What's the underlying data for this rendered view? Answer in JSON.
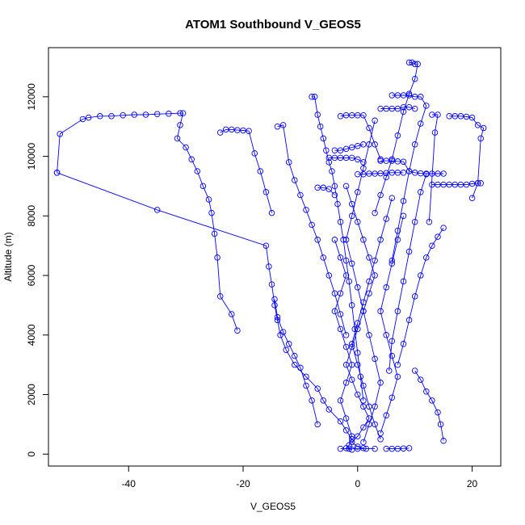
{
  "chart_data": {
    "type": "scatter",
    "title": "ATOM1 Southbound V_GEOS5",
    "xlabel": "V_GEOS5",
    "ylabel": "Altitude (m)",
    "xlim": [
      -54,
      25
    ],
    "ylim": [
      -400,
      13650
    ],
    "xticks": [
      -40,
      -20,
      0,
      20
    ],
    "yticks": [
      0,
      2000,
      4000,
      6000,
      8000,
      10000,
      12000
    ],
    "grid": false,
    "legend": "none",
    "series_color": "#0000ff",
    "series": [
      {
        "mode": "lines+markers",
        "x": [
          -52.5,
          -35,
          -16,
          -15.5,
          -15,
          -14.5,
          -14,
          -13.5,
          -12.5,
          -11,
          -9,
          -7,
          -6,
          -5,
          -3,
          -2,
          -1,
          -1.5,
          -2,
          -1
        ],
        "y": [
          9450,
          8200,
          7000,
          6300,
          5700,
          5000,
          4500,
          4000,
          3500,
          3000,
          2600,
          2200,
          1800,
          1500,
          1100,
          800,
          500,
          300,
          200,
          150
        ]
      },
      {
        "mode": "lines+markers",
        "x": [
          -52.5,
          -52,
          -48,
          -47,
          -45,
          -43,
          -41,
          -39,
          -37,
          -35,
          -33,
          -31,
          -30.5,
          -31,
          -31.5,
          -30,
          -29,
          -28,
          -27,
          -26,
          -25.5,
          -25,
          -24.5,
          -24,
          -22,
          -21
        ],
        "y": [
          9450,
          10750,
          11250,
          11300,
          11350,
          11350,
          11380,
          11400,
          11400,
          11420,
          11430,
          11450,
          11450,
          11050,
          10600,
          10300,
          9900,
          9500,
          9000,
          8550,
          8100,
          7400,
          6600,
          5300,
          4700,
          4150
        ]
      },
      {
        "mode": "lines+markers",
        "x": [
          -24,
          -23,
          -22,
          -21,
          -20,
          -19,
          -18,
          -17,
          -16,
          -15
        ],
        "y": [
          10800,
          10900,
          10900,
          10880,
          10870,
          10850,
          10100,
          9500,
          8800,
          8100
        ]
      },
      {
        "mode": "lines+markers",
        "x": [
          -14,
          -13,
          -12,
          -11,
          -10,
          -9,
          -8,
          -7,
          -6,
          -5,
          -4,
          -3,
          -2
        ],
        "y": [
          11000,
          11050,
          9800,
          9200,
          8700,
          8200,
          7700,
          7200,
          6600,
          6000,
          5400,
          4700,
          4000
        ]
      },
      {
        "mode": "lines+markers",
        "x": [
          -8,
          -7.5,
          -7,
          -6.5,
          -6,
          -5.5,
          -5,
          -4.5,
          -4,
          -3.5,
          -3,
          -2.5,
          -2,
          -1.5,
          -1,
          -0.5,
          0,
          0.5,
          1
        ],
        "y": [
          12000,
          12000,
          11400,
          11000,
          10600,
          10200,
          9800,
          9500,
          9000,
          8400,
          7800,
          7200,
          6500,
          5800,
          5000,
          4200,
          3400,
          2600,
          1800
        ]
      },
      {
        "mode": "lines+markers",
        "x": [
          -3,
          -2,
          -1,
          0,
          1,
          2,
          3,
          4
        ],
        "y": [
          11350,
          11380,
          11380,
          11380,
          11380,
          10950,
          10400,
          9900
        ]
      },
      {
        "mode": "lines+markers",
        "x": [
          9,
          9.5,
          10,
          10.5,
          10,
          9,
          8,
          7,
          6,
          5,
          4,
          3
        ],
        "y": [
          13150,
          13150,
          13100,
          13100,
          12600,
          12100,
          11500,
          10700,
          9900,
          9300,
          8700,
          8100
        ]
      },
      {
        "mode": "lines+markers",
        "x": [
          6,
          7,
          8,
          9,
          10,
          11,
          12,
          11,
          10,
          9,
          8,
          7,
          6
        ],
        "y": [
          12050,
          12050,
          12050,
          12050,
          12000,
          12000,
          11700,
          11100,
          10400,
          9500,
          8500,
          7500,
          6500
        ]
      },
      {
        "mode": "lines+markers",
        "x": [
          4,
          5,
          6,
          7,
          8,
          9,
          10
        ],
        "y": [
          11600,
          11600,
          11600,
          11600,
          11650,
          11650,
          11600
        ]
      },
      {
        "mode": "lines+markers",
        "x": [
          16,
          17,
          18,
          19,
          20,
          21,
          22,
          21.5,
          21,
          20
        ],
        "y": [
          11350,
          11350,
          11350,
          11330,
          11300,
          11050,
          10950,
          10600,
          9100,
          8600
        ]
      },
      {
        "mode": "lines+markers",
        "x": [
          13,
          14,
          15,
          16,
          17,
          18,
          19,
          20,
          21,
          21.5
        ],
        "y": [
          9050,
          9050,
          9050,
          9050,
          9050,
          9050,
          9050,
          9080,
          9100,
          9100
        ]
      },
      {
        "mode": "lines+markers",
        "x": [
          4,
          5,
          6,
          7,
          8,
          9,
          10,
          11,
          12,
          13,
          14,
          15
        ],
        "y": [
          9850,
          9850,
          9850,
          9830,
          9820,
          9500,
          9450,
          9430,
          9420,
          9420,
          9420,
          9420
        ]
      },
      {
        "mode": "lines+markers",
        "x": [
          0,
          1,
          2,
          3,
          4,
          5,
          6,
          7,
          8
        ],
        "y": [
          9400,
          9400,
          9420,
          9420,
          9430,
          9440,
          9450,
          9450,
          9450
        ]
      },
      {
        "mode": "lines+markers",
        "x": [
          -5,
          -4,
          -3,
          -2,
          -1,
          0,
          1
        ],
        "y": [
          9950,
          9950,
          9950,
          9950,
          9950,
          9900,
          9800
        ]
      },
      {
        "mode": "lines+markers",
        "x": [
          -4,
          -3,
          -2,
          -1,
          0,
          1
        ],
        "y": [
          10200,
          10200,
          10250,
          10300,
          10350,
          10400
        ]
      },
      {
        "mode": "lines+markers",
        "x": [
          -7,
          -6,
          -5,
          -4
        ],
        "y": [
          8950,
          8950,
          8900,
          8700
        ]
      },
      {
        "mode": "lines+markers",
        "x": [
          15,
          14,
          13,
          12,
          11,
          10,
          9,
          8,
          7
        ],
        "y": [
          7600,
          7300,
          7000,
          6600,
          6000,
          5300,
          4500,
          3700,
          3000
        ]
      },
      {
        "mode": "lines+markers",
        "x": [
          10,
          11,
          12,
          13,
          14,
          14.5,
          15
        ],
        "y": [
          2800,
          2500,
          2100,
          1800,
          1400,
          1000,
          450
        ]
      },
      {
        "mode": "lines+markers",
        "x": [
          12,
          11,
          10,
          9,
          8,
          7,
          6,
          5.5
        ],
        "y": [
          9400,
          8800,
          7800,
          6800,
          5800,
          4800,
          3800,
          2800
        ]
      },
      {
        "mode": "lines+markers",
        "x": [
          13,
          14,
          13.5,
          12.5
        ],
        "y": [
          11400,
          11400,
          10800,
          7800
        ]
      },
      {
        "mode": "lines+markers",
        "x": [
          -14.5,
          -14,
          -13,
          -12,
          -11,
          -10,
          -9,
          -8,
          -7
        ],
        "y": [
          5200,
          4600,
          4100,
          3700,
          3300,
          2900,
          2300,
          1800,
          1000
        ]
      },
      {
        "mode": "lines+markers",
        "x": [
          -3,
          -1.5,
          0,
          1.5,
          3
        ],
        "y": [
          180,
          180,
          180,
          180,
          180
        ]
      },
      {
        "mode": "lines+markers",
        "x": [
          5,
          6,
          7,
          8,
          9
        ],
        "y": [
          180,
          180,
          180,
          190,
          200
        ]
      },
      {
        "mode": "lines+markers",
        "x": [
          -2,
          -1,
          0,
          1,
          2,
          3,
          2,
          1,
          0,
          -1,
          -2,
          -1,
          0,
          1,
          2,
          1,
          0,
          -1,
          0,
          1
        ],
        "y": [
          9000,
          8400,
          7800,
          7200,
          6600,
          6000,
          5400,
          4800,
          4200,
          3600,
          3000,
          2500,
          2000,
          1600,
          1200,
          900,
          600,
          400,
          250,
          200
        ]
      },
      {
        "mode": "lines+markers",
        "x": [
          3,
          2,
          1,
          0,
          -1,
          -2,
          -1,
          0,
          1,
          2,
          3,
          4,
          3,
          2,
          1
        ],
        "y": [
          11200,
          10400,
          9600,
          8800,
          8000,
          7200,
          6400,
          5600,
          4800,
          4000,
          3200,
          2400,
          1600,
          1000,
          400
        ]
      },
      {
        "mode": "lines+markers",
        "x": [
          6,
          5,
          4,
          3,
          2,
          1,
          0,
          -1,
          0,
          1,
          2,
          3,
          4
        ],
        "y": [
          8600,
          7900,
          7200,
          6500,
          5800,
          5100,
          4400,
          3700,
          3000,
          2300,
          1600,
          1000,
          500
        ]
      },
      {
        "mode": "lines+markers",
        "x": [
          -4,
          -3,
          -2,
          -3,
          -4,
          -3,
          -2,
          -1,
          -2,
          -3,
          -2,
          -1
        ],
        "y": [
          7200,
          6600,
          6000,
          5400,
          4800,
          4200,
          3600,
          3000,
          2400,
          1800,
          1200,
          600
        ]
      },
      {
        "mode": "lines+markers",
        "x": [
          8,
          7,
          6,
          5,
          4,
          5,
          6,
          7,
          6,
          5,
          4
        ],
        "y": [
          8000,
          7200,
          6400,
          5600,
          4800,
          4000,
          3300,
          2600,
          1900,
          1300,
          700
        ]
      }
    ]
  }
}
